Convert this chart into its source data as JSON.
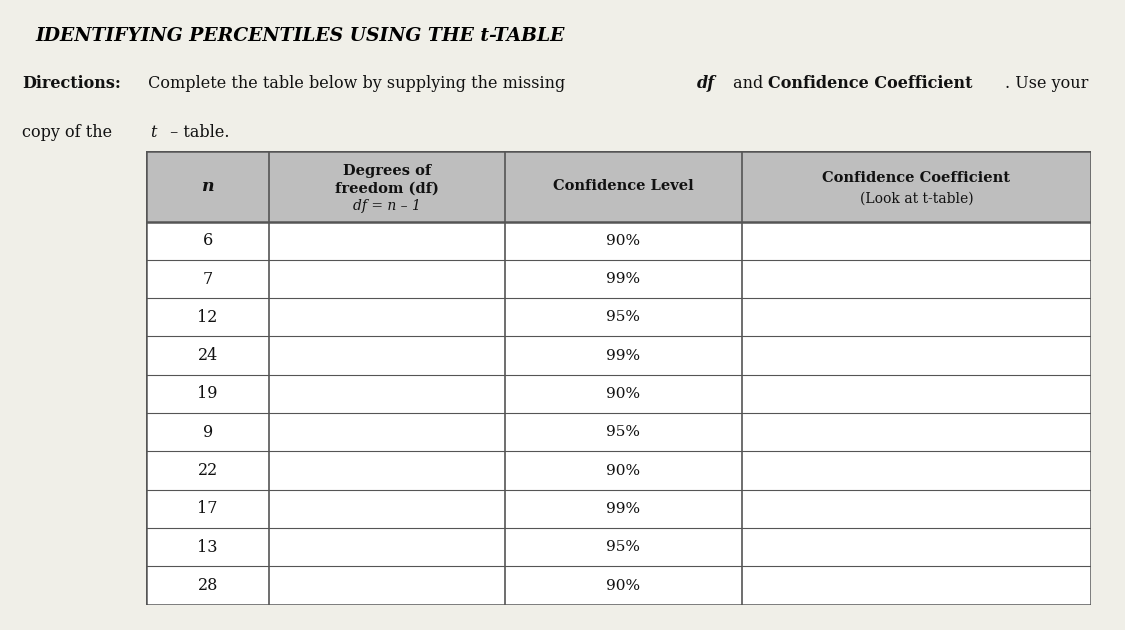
{
  "title": "IDENTIFYING PERCENTILES USING THE t-TABLE",
  "title_bg": "#FFFF00",
  "col_headers_line1": [
    "n",
    "Degrees of",
    "Confidence Level",
    "Confidence Coefficient"
  ],
  "col_headers_line2": [
    "",
    "freedom (df)",
    "",
    "(Look at t-table)"
  ],
  "col_headers_line3": [
    "",
    "df = n - 1",
    "",
    ""
  ],
  "rows": [
    [
      "6",
      "",
      "90%",
      ""
    ],
    [
      "7",
      "",
      "99%",
      ""
    ],
    [
      "12",
      "",
      "95%",
      ""
    ],
    [
      "24",
      "",
      "99%",
      ""
    ],
    [
      "19",
      "",
      "90%",
      ""
    ],
    [
      "9",
      "",
      "95%",
      ""
    ],
    [
      "22",
      "",
      "90%",
      ""
    ],
    [
      "17",
      "",
      "99%",
      ""
    ],
    [
      "13",
      "",
      "95%",
      ""
    ],
    [
      "28",
      "",
      "90%",
      ""
    ]
  ],
  "header_bg": "#BEBEBE",
  "table_border_color": "#555555",
  "page_bg": "#F0EFE8",
  "title_text_color": "#000000",
  "body_text_color": "#111111",
  "col_props": [
    0.13,
    0.25,
    0.25,
    0.37
  ]
}
